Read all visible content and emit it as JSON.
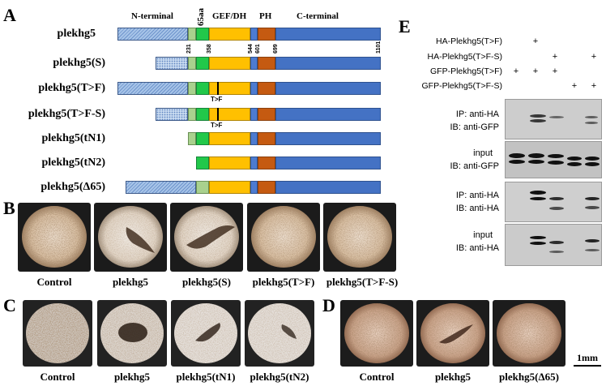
{
  "panels": {
    "A": "A",
    "B": "B",
    "C": "C",
    "D": "D",
    "E": "E"
  },
  "panelA": {
    "domains": {
      "n_terminal": "N-terminal",
      "aa65": "65aa",
      "gef_dh": "GEF/DH",
      "ph": "PH",
      "c_terminal": "C-terminal"
    },
    "positions": [
      "231",
      "358",
      "544",
      "601",
      "699",
      "1101"
    ],
    "constructs": [
      "plekhg5",
      "plekhg5(S)",
      "plekhg5(T>F)",
      "plekhg5(T>F-S)",
      "plekhg5(tN1)",
      "plekhg5(tN2)",
      "plekhg5(Δ65)"
    ],
    "mutation_label": "T>F"
  },
  "panelB": {
    "labels": [
      "Control",
      "plekhg5",
      "plekhg5(S)",
      "plekhg5(T>F)",
      "plekhg5(T>F-S)"
    ]
  },
  "panelC": {
    "labels": [
      "Control",
      "plekhg5",
      "plekhg5(tN1)",
      "plekhg5(tN2)"
    ]
  },
  "panelD": {
    "labels": [
      "Control",
      "plekhg5",
      "plekhg5(Δ65)"
    ]
  },
  "scale_bar": "1mm",
  "panelE": {
    "constructs": [
      {
        "label": "HA-Plekhg5(T>F)",
        "lanes": [
          "",
          "+",
          "",
          "",
          ""
        ]
      },
      {
        "label": "HA-Plekhg5(T>F-S)",
        "lanes": [
          "",
          "",
          "+",
          "",
          "+"
        ]
      },
      {
        "label": "GFP-Plekhg5(T>F)",
        "lanes": [
          "+",
          "+",
          "+",
          "",
          ""
        ]
      },
      {
        "label": "GFP-Plekhg5(T>F-S)",
        "lanes": [
          "",
          "",
          "",
          "+",
          "+"
        ]
      }
    ],
    "blots": [
      {
        "line1": "IP: anti-HA",
        "line2": "IB: anti-GFP"
      },
      {
        "line1": "input",
        "line2": "IB: anti-GFP"
      },
      {
        "line1": "IP: anti-HA",
        "line2": "IB: anti-HA"
      },
      {
        "line1": "input",
        "line2": "IB: anti-HA"
      }
    ]
  }
}
